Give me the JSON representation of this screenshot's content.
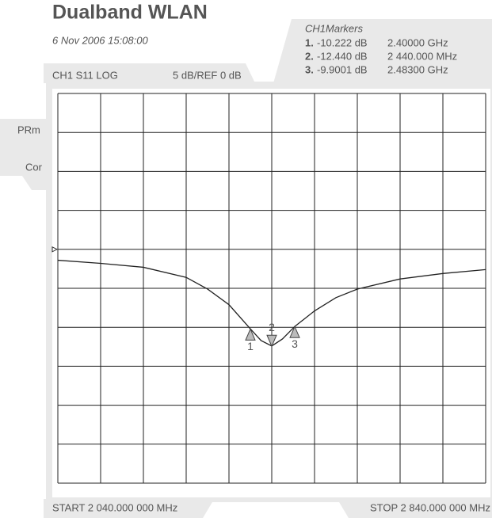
{
  "chart_data": {
    "type": "line",
    "title": "Dualband WLAN",
    "subtitle": "6 Nov 2006 15:08:00",
    "trace_label": "CH1 S11 LOG",
    "scale_label": "5 dB/REF 0 dB",
    "reference_level": 0,
    "side_labels": [
      "PRm",
      "Cor"
    ],
    "markers_title": "CH1Markers",
    "markers": [
      {
        "number": "1.",
        "tag": "1",
        "value": -10.222,
        "value_label": "-10.222 dB",
        "x": 2400,
        "x_label": "2.40000 GHz"
      },
      {
        "number": "2.",
        "tag": "2",
        "value": -12.44,
        "value_label": "-12.440 dB",
        "x": 2440,
        "x_label": "2 440.000 MHz"
      },
      {
        "number": "3.",
        "tag": "3",
        "value": -9.9001,
        "value_label": "-9.9001 dB",
        "x": 2483,
        "x_label": "2.48300 GHz"
      }
    ],
    "start_label": "START 2 040.000 000 MHz",
    "stop_label": "STOP 2 840.000 000 MHz",
    "x": [
      2040,
      2120,
      2200,
      2280,
      2320,
      2360,
      2400,
      2420,
      2440,
      2460,
      2483,
      2520,
      2560,
      2600,
      2680,
      2760,
      2840
    ],
    "series": [
      {
        "color": "#222222",
        "values": [
          -1.4,
          -1.8,
          -2.3,
          -3.6,
          -5.1,
          -7.1,
          -10.2,
          -11.7,
          -12.4,
          -11.5,
          -9.9,
          -7.9,
          -6.2,
          -5.1,
          -3.8,
          -3.1,
          -2.6
        ]
      }
    ],
    "xlim": [
      2040,
      2840
    ],
    "xticks": [
      2040,
      2120,
      2200,
      2280,
      2360,
      2440,
      2520,
      2600,
      2680,
      2760,
      2840
    ],
    "ylim": [
      -30,
      20
    ],
    "yticks": [
      -30,
      -25,
      -20,
      -15,
      -10,
      -5,
      0,
      5,
      10,
      15,
      20
    ],
    "grid": true
  }
}
